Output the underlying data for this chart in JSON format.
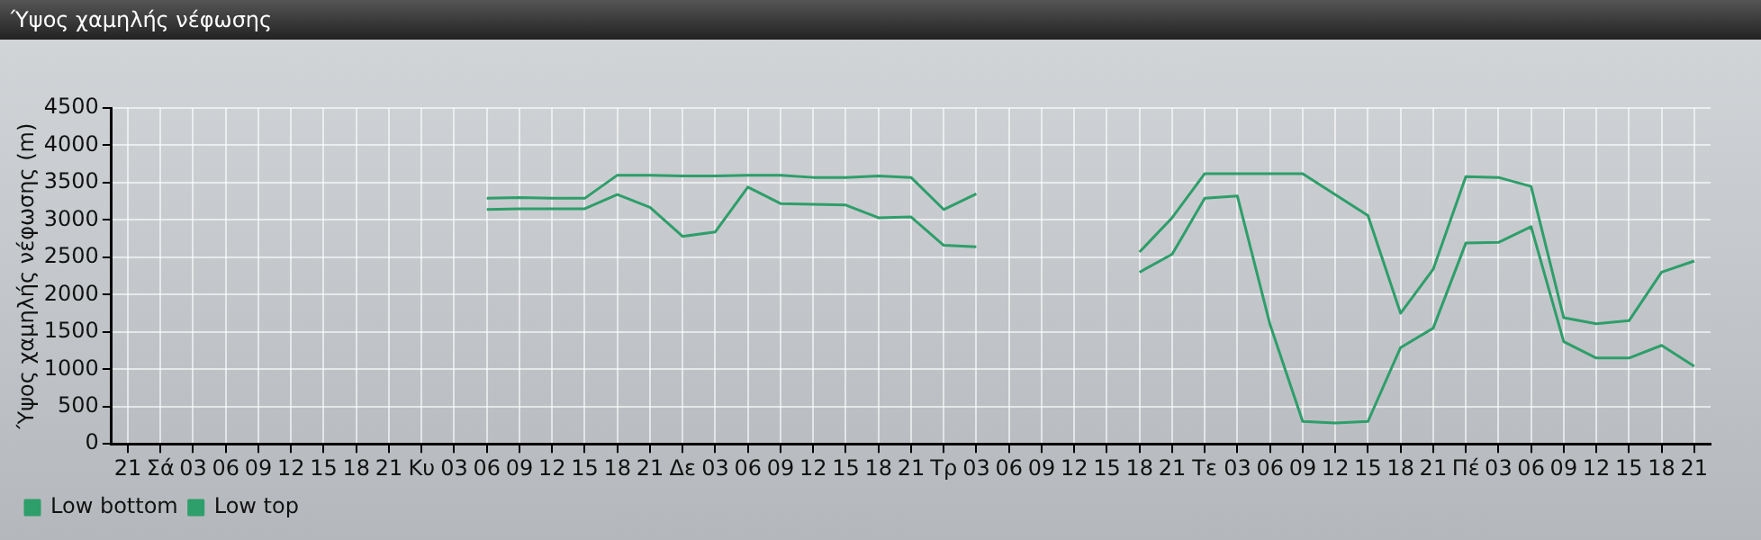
{
  "chart_data": {
    "type": "line",
    "title": "Ύψος χαμηλής νέφωσης",
    "ylabel": "Ύψος χαμηλής νέφωσης (m)",
    "categories": [
      "21",
      "Σά",
      "03",
      "06",
      "09",
      "12",
      "15",
      "18",
      "21",
      "Κυ",
      "03",
      "06",
      "09",
      "12",
      "15",
      "18",
      "21",
      "Δε",
      "03",
      "06",
      "09",
      "12",
      "15",
      "18",
      "21",
      "Τρ",
      "03",
      "06",
      "09",
      "12",
      "15",
      "18",
      "21",
      "Τε",
      "03",
      "06",
      "09",
      "12",
      "15",
      "18",
      "21",
      "Πέ",
      "03",
      "06",
      "09",
      "12",
      "15",
      "18",
      "21"
    ],
    "series": [
      {
        "name": "Low bottom",
        "color": "#2e9e6a",
        "values": [
          null,
          null,
          null,
          null,
          null,
          null,
          null,
          null,
          null,
          null,
          null,
          3140,
          3150,
          3150,
          3150,
          3340,
          3170,
          2780,
          2840,
          3440,
          3220,
          3210,
          3200,
          3030,
          3040,
          2660,
          2640,
          null,
          null,
          null,
          null,
          2300,
          2540,
          3290,
          3320,
          1600,
          300,
          280,
          300,
          1290,
          1550,
          2690,
          2700,
          2910,
          1370,
          1150,
          1150,
          1320,
          1040
        ]
      },
      {
        "name": "Low top",
        "color": "#2e9e6a",
        "values": [
          null,
          null,
          null,
          null,
          null,
          null,
          null,
          null,
          null,
          null,
          null,
          3290,
          3300,
          3290,
          3290,
          3600,
          3600,
          3590,
          3590,
          3600,
          3600,
          3570,
          3570,
          3590,
          3570,
          3140,
          3350,
          null,
          null,
          null,
          null,
          2570,
          3030,
          3620,
          3620,
          3620,
          3620,
          3340,
          3060,
          1750,
          2340,
          3580,
          3570,
          3450,
          1690,
          1610,
          1650,
          2300,
          2450
        ]
      }
    ],
    "ylim": [
      0,
      4500
    ],
    "yticks": [
      0,
      500,
      1000,
      1500,
      2000,
      2500,
      3000,
      3500,
      4000,
      4500
    ],
    "grid": true,
    "legend": "bottom left",
    "marker": "none",
    "line_style": "solid"
  }
}
